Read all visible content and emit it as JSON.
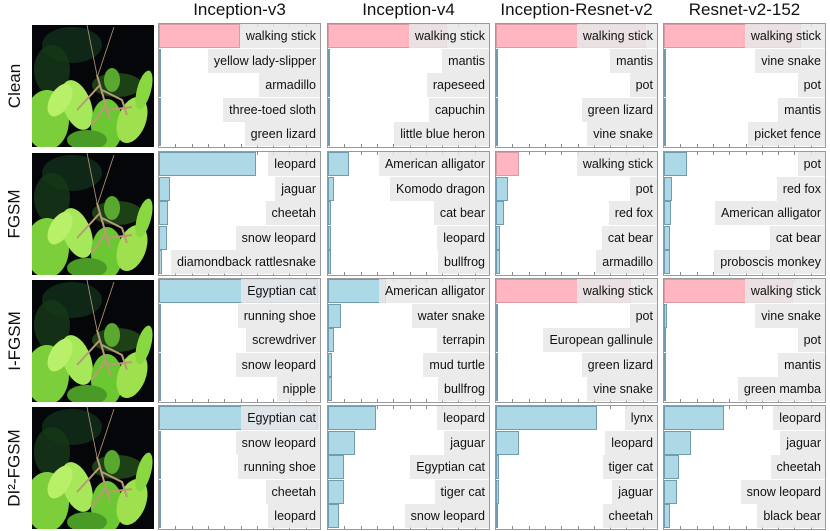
{
  "colors": {
    "true_class": "#ffb6c1",
    "other_class": "#add8e6"
  },
  "chart_data": {
    "type": "bar",
    "orientation": "horizontal",
    "xlim": [
      0,
      1
    ],
    "grid": false,
    "models": [
      "Inception-v3",
      "Inception-v4",
      "Inception-Resnet-v2",
      "Resnet-v2-152"
    ],
    "attacks": [
      "Clean",
      "FGSM",
      "I-FGSM",
      "DI²-FGSM"
    ],
    "true_label": "walking stick",
    "panels": [
      [
        {
          "labels": [
            "walking stick",
            "yellow lady-slipper",
            "armadillo",
            "three-toed sloth",
            "green lizard"
          ],
          "values": [
            0.5,
            0.01,
            0.005,
            0.005,
            0.005
          ]
        },
        {
          "labels": [
            "walking stick",
            "mantis",
            "rapeseed",
            "capuchin",
            "little blue heron"
          ],
          "values": [
            0.74,
            0.005,
            0.003,
            0.003,
            0.003
          ]
        },
        {
          "labels": [
            "walking stick",
            "mantis",
            "pot",
            "green lizard",
            "vine snake"
          ],
          "values": [
            0.93,
            0.003,
            0.002,
            0.002,
            0.002
          ]
        },
        {
          "labels": [
            "walking stick",
            "vine snake",
            "pot",
            "mantis",
            "picket fence"
          ],
          "values": [
            0.85,
            0.015,
            0.008,
            0.008,
            0.008
          ]
        }
      ],
      [
        {
          "labels": [
            "leopard",
            "jaguar",
            "cheetah",
            "snow leopard",
            "diamondback rattlesnake"
          ],
          "values": [
            0.6,
            0.07,
            0.055,
            0.05,
            0.02
          ]
        },
        {
          "labels": [
            "American alligator",
            "Komodo dragon",
            "cat bear",
            "leopard",
            "bullfrog"
          ],
          "values": [
            0.13,
            0.035,
            0.02,
            0.02,
            0.02
          ]
        },
        {
          "labels": [
            "walking stick",
            "pot",
            "red fox",
            "cat bear",
            "armadillo"
          ],
          "values": [
            0.14,
            0.075,
            0.047,
            0.027,
            0.027
          ]
        },
        {
          "labels": [
            "pot",
            "red fox",
            "American alligator",
            "cat bear",
            "proboscis monkey"
          ],
          "values": [
            0.14,
            0.05,
            0.045,
            0.037,
            0.037
          ]
        }
      ],
      [
        {
          "labels": [
            "Egyptian cat",
            "running shoe",
            "screwdriver",
            "snow leopard",
            "nipple"
          ],
          "values": [
            0.99,
            0.002,
            0.002,
            0.002,
            0.002
          ]
        },
        {
          "labels": [
            "American alligator",
            "water snake",
            "terrapin",
            "mud turtle",
            "bullfrog"
          ],
          "values": [
            0.36,
            0.08,
            0.04,
            0.025,
            0.025
          ]
        },
        {
          "labels": [
            "walking stick",
            "pot",
            "European gallinule",
            "green lizard",
            "vine snake"
          ],
          "values": [
            0.84,
            0.005,
            0.004,
            0.004,
            0.004
          ]
        },
        {
          "labels": [
            "walking stick",
            "vine snake",
            "pot",
            "mantis",
            "green mamba"
          ],
          "values": [
            0.8,
            0.02,
            0.015,
            0.01,
            0.01
          ]
        }
      ],
      [
        {
          "labels": [
            "Egyptian cat",
            "snow leopard",
            "running shoe",
            "cheetah",
            "leopard"
          ],
          "values": [
            0.99,
            0.002,
            0.002,
            0.002,
            0.002
          ]
        },
        {
          "labels": [
            "leopard",
            "jaguar",
            "Egyptian cat",
            "tiger cat",
            "snow leopard"
          ],
          "values": [
            0.3,
            0.17,
            0.1,
            0.1,
            0.07
          ]
        },
        {
          "labels": [
            "lynx",
            "leopard",
            "tiger cat",
            "jaguar",
            "cheetah"
          ],
          "values": [
            0.63,
            0.14,
            0.02,
            0.02,
            0.015
          ]
        },
        {
          "labels": [
            "leopard",
            "jaguar",
            "cheetah",
            "snow leopard",
            "black bear"
          ],
          "values": [
            0.37,
            0.17,
            0.094,
            0.08,
            0.035
          ]
        }
      ]
    ]
  }
}
